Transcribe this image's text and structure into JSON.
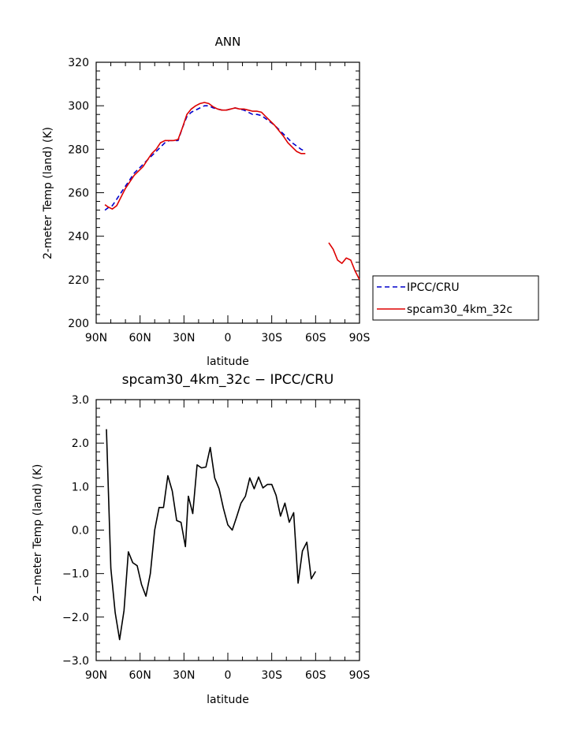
{
  "chart_data": [
    {
      "type": "line",
      "title": "ANN",
      "xlabel": "latitude",
      "ylabel": "2-meter Temp (land) (K)",
      "xlim": [
        90,
        -90
      ],
      "ylim": [
        200,
        320
      ],
      "xticks": [
        90,
        60,
        30,
        0,
        -30,
        -60,
        -90
      ],
      "xticklabels": [
        "90N",
        "60N",
        "30N",
        "0",
        "30S",
        "60S",
        "90S"
      ],
      "yticks": [
        200,
        220,
        240,
        260,
        280,
        300,
        320
      ],
      "yticklabels": [
        "200",
        "220",
        "240",
        "260",
        "280",
        "300",
        "320"
      ],
      "legend": "right",
      "series": [
        {
          "name": "IPCC/CRU",
          "color": "#0000cc",
          "dash": "dashed",
          "segments": [
            [
              [
                84,
                252
              ],
              [
                82,
                253
              ],
              [
                79,
                254
              ],
              [
                76,
                257
              ],
              [
                73,
                260
              ],
              [
                70,
                263
              ],
              [
                67,
                266
              ],
              [
                64,
                269
              ],
              [
                61,
                271
              ],
              [
                58,
                273
              ],
              [
                55,
                275
              ],
              [
                52,
                277
              ],
              [
                49,
                279
              ],
              [
                46,
                281
              ],
              [
                43,
                283
              ],
              [
                40,
                284
              ],
              [
                37,
                284
              ],
              [
                34,
                284
              ],
              [
                31,
                290
              ],
              [
                28,
                295
              ],
              [
                25,
                297
              ],
              [
                22,
                298
              ],
              [
                19,
                299
              ],
              [
                16,
                300
              ],
              [
                13,
                300
              ],
              [
                10,
                299
              ],
              [
                7,
                298.5
              ],
              [
                4,
                298
              ],
              [
                1,
                298
              ],
              [
                -2,
                298.5
              ],
              [
                -5,
                299
              ],
              [
                -8,
                298.5
              ],
              [
                -11,
                298
              ],
              [
                -14,
                297
              ],
              [
                -17,
                296
              ],
              [
                -20,
                296
              ],
              [
                -23,
                295.5
              ],
              [
                -26,
                294
              ],
              [
                -29,
                292.5
              ],
              [
                -32,
                291
              ],
              [
                -35,
                289
              ],
              [
                -38,
                287
              ],
              [
                -41,
                285
              ],
              [
                -44,
                283
              ],
              [
                -47,
                281.5
              ],
              [
                -50,
                280
              ],
              [
                -53,
                279
              ]
            ]
          ]
        },
        {
          "name": "spcam30_4km_32c",
          "color": "#dd0000",
          "dash": "solid",
          "segments": [
            [
              [
                84,
                254.5
              ],
              [
                82,
                253.5
              ],
              [
                79,
                252.5
              ],
              [
                76,
                254
              ],
              [
                73,
                258
              ],
              [
                70,
                262
              ],
              [
                67,
                265
              ],
              [
                64,
                268
              ],
              [
                61,
                270
              ],
              [
                58,
                272
              ],
              [
                55,
                275
              ],
              [
                52,
                278
              ],
              [
                49,
                280
              ],
              [
                46,
                283
              ],
              [
                43,
                284
              ],
              [
                40,
                284
              ],
              [
                37,
                284
              ],
              [
                34,
                284.5
              ],
              [
                31,
                290
              ],
              [
                28,
                296
              ],
              [
                25,
                298.5
              ],
              [
                22,
                300
              ],
              [
                19,
                301
              ],
              [
                16,
                301.5
              ],
              [
                13,
                301
              ],
              [
                10,
                299.5
              ],
              [
                7,
                298.5
              ],
              [
                4,
                298
              ],
              [
                1,
                298
              ],
              [
                -2,
                298.5
              ],
              [
                -5,
                299
              ],
              [
                -8,
                298.5
              ],
              [
                -11,
                298.5
              ],
              [
                -14,
                298
              ],
              [
                -17,
                297.5
              ],
              [
                -20,
                297.5
              ],
              [
                -23,
                297
              ],
              [
                -26,
                295
              ],
              [
                -29,
                293
              ],
              [
                -32,
                291
              ],
              [
                -35,
                288.5
              ],
              [
                -38,
                286
              ],
              [
                -41,
                283
              ],
              [
                -44,
                281
              ],
              [
                -47,
                279
              ],
              [
                -50,
                278
              ],
              [
                -53,
                278
              ]
            ],
            [
              [
                -69,
                237
              ],
              [
                -72,
                234
              ],
              [
                -75,
                229
              ],
              [
                -78,
                227.5
              ],
              [
                -81,
                230
              ],
              [
                -84,
                229
              ],
              [
                -87,
                224
              ],
              [
                -90,
                220
              ]
            ]
          ]
        }
      ]
    },
    {
      "type": "line",
      "title": "spcam30_4km_32c − IPCC/CRU",
      "xlabel": "latitude",
      "ylabel": "2−meter Temp (land) (K)",
      "xlim": [
        90,
        -90
      ],
      "ylim": [
        -3,
        3
      ],
      "xticks": [
        90,
        60,
        30,
        0,
        -30,
        -60,
        -90
      ],
      "xticklabels": [
        "90N",
        "60N",
        "30N",
        "0",
        "30S",
        "60S",
        "90S"
      ],
      "yticks": [
        -3,
        -2,
        -1,
        0,
        1,
        2,
        3
      ],
      "yticklabels": [
        "−3.0",
        "−2.0",
        "−1.0",
        "0.0",
        "1.0",
        "2.0",
        "3.0"
      ],
      "series": [
        {
          "color": "#000000",
          "dash": "solid",
          "segments": [
            [
              [
                83,
                2.32
              ],
              [
                80,
                -0.88
              ],
              [
                77,
                -1.9
              ],
              [
                74,
                -2.52
              ],
              [
                71,
                -1.85
              ],
              [
                68,
                -0.5
              ],
              [
                65,
                -0.75
              ],
              [
                62,
                -0.82
              ],
              [
                59,
                -1.25
              ],
              [
                56,
                -1.52
              ],
              [
                53,
                -1.0
              ],
              [
                50,
                0.0
              ],
              [
                47,
                0.52
              ],
              [
                44,
                0.52
              ],
              [
                41,
                1.25
              ],
              [
                38,
                0.9
              ],
              [
                35,
                0.22
              ],
              [
                32,
                0.18
              ],
              [
                29,
                -0.38
              ],
              [
                27,
                0.78
              ],
              [
                24,
                0.38
              ],
              [
                21,
                1.5
              ],
              [
                18,
                1.43
              ],
              [
                15,
                1.45
              ],
              [
                12,
                1.9
              ],
              [
                9,
                1.2
              ],
              [
                6,
                0.95
              ],
              [
                3,
                0.5
              ],
              [
                0,
                0.12
              ],
              [
                -3,
                0.0
              ],
              [
                -6,
                0.3
              ],
              [
                -9,
                0.62
              ],
              [
                -12,
                0.78
              ],
              [
                -15,
                1.2
              ],
              [
                -18,
                0.95
              ],
              [
                -21,
                1.22
              ],
              [
                -24,
                0.97
              ],
              [
                -27,
                1.05
              ],
              [
                -30,
                1.05
              ],
              [
                -33,
                0.8
              ],
              [
                -36,
                0.32
              ],
              [
                -39,
                0.62
              ],
              [
                -42,
                0.18
              ],
              [
                -45,
                0.4
              ],
              [
                -48,
                -1.22
              ],
              [
                -51,
                -0.48
              ],
              [
                -54,
                -0.28
              ],
              [
                -57,
                -1.12
              ],
              [
                -60,
                -0.95
              ]
            ]
          ]
        }
      ]
    }
  ]
}
